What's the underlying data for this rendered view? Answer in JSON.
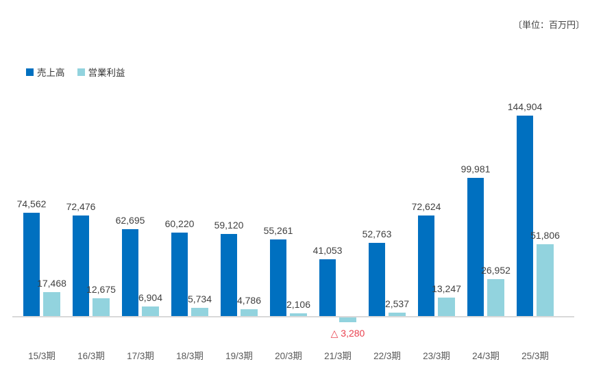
{
  "unit_note": "〔単位：百万円〕",
  "colors": {
    "sales": "#0070c0",
    "profit": "#92d3de",
    "negative_label": "#e9404e",
    "axis_line": "#d9d9d9",
    "value_label": "#404040",
    "tick_label": "#595959"
  },
  "chart_data": {
    "type": "bar",
    "title": "",
    "xlabel": "",
    "ylabel": "",
    "unit": "百万円",
    "ylim": [
      -5000,
      150000
    ],
    "grid": false,
    "legend_position": "top-left",
    "categories": [
      "15/3期",
      "16/3期",
      "17/3期",
      "18/3期",
      "19/3期",
      "20/3期",
      "21/3期",
      "22/3期",
      "23/3期",
      "24/3期",
      "25/3期"
    ],
    "series": [
      {
        "name": "売上高",
        "color": "#0070c0",
        "values": [
          74562,
          72476,
          62695,
          60220,
          59120,
          55261,
          41053,
          52763,
          72624,
          99981,
          144904
        ],
        "labels": [
          "74,562",
          "72,476",
          "62,695",
          "60,220",
          "59,120",
          "55,261",
          "41,053",
          "52,763",
          "72,624",
          "99,981",
          "144,904"
        ]
      },
      {
        "name": "営業利益",
        "color": "#92d3de",
        "values": [
          17468,
          12675,
          6904,
          5734,
          4786,
          2106,
          -3280,
          2537,
          13247,
          26952,
          51806
        ],
        "labels": [
          "17,468",
          "12,675",
          "6,904",
          "5,734",
          "4,786",
          "2,106",
          "△ 3,280",
          "2,537",
          "13,247",
          "26,952",
          "51,806"
        ]
      }
    ]
  }
}
